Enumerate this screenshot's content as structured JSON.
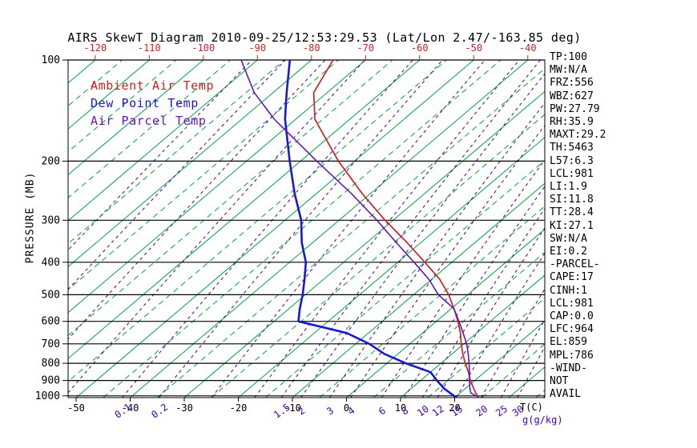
{
  "axes": {
    "pressure_label": "PRESSURE (MB)",
    "pressure_ticks": [
      100,
      200,
      300,
      400,
      500,
      600,
      700,
      800,
      900,
      1000
    ],
    "temp_axis_label": "T(C)",
    "mixing_axis_label": "g(g/kg)",
    "top_temp_labels": [
      -120,
      -110,
      -100,
      -90,
      -80,
      -70,
      -60,
      -50,
      -40
    ],
    "bottom_temp_labels": [
      -50,
      -40,
      -30,
      -20,
      -10,
      0,
      10,
      20
    ]
  },
  "stats": {
    "lines": [
      "TP:100",
      "MW:N/A",
      "FRZ:556",
      "WBZ:627",
      "PW:27.79",
      "RH:35.9",
      "MAXT:29.2",
      "TH:5463",
      "L57:6.3",
      "LCL:981",
      "LI:1.9",
      "SI:11.8",
      "TT:28.4",
      "KI:27.1",
      "SW:N/A",
      "EI:0.2",
      "-PARCEL-",
      "CAPE:17",
      "CINH:1",
      "LCL:981",
      "CAP:0.0",
      "LFC:964",
      "EL:859",
      "MPL:786",
      "-WIND-",
      "NOT",
      "AVAIL"
    ]
  },
  "chart_data": {
    "type": "line",
    "subtype": "skew-t-log-p",
    "title": "AIRS SkewT Diagram 2010-09-25/12:53:29.53 (Lat/Lon 2.47/-163.85 deg)",
    "units": {
      "pressure": "mb",
      "temperature": "C",
      "mixing_ratio": "g/kg"
    },
    "pressure_range": [
      100,
      1012
    ],
    "isotherm_step_c": 10,
    "legend_position": "top-left",
    "grid": true,
    "mixing_ratio_labeled": [
      0.1,
      0.2,
      1.5,
      2,
      3,
      4,
      6,
      8,
      10,
      12,
      15,
      20,
      25,
      30
    ],
    "mixing_ratio_unlabeled": [
      0.001,
      0.003,
      0.01,
      0.03,
      0.5,
      1,
      40
    ],
    "colors": {
      "isotherm": "#00a444",
      "mixing_ratio": "#4400aa",
      "temp_axis": "#cc2222",
      "pressure_grid": "#000000"
    },
    "series": [
      {
        "name": "Ambient Air Temp",
        "color": "#cc2222",
        "width": 1.7,
        "points": [
          [
            1008,
            24.3
          ],
          [
            1000,
            23.8
          ],
          [
            950,
            21.5
          ],
          [
            900,
            19.2
          ],
          [
            850,
            17.0
          ],
          [
            800,
            14.5
          ],
          [
            750,
            12.0
          ],
          [
            700,
            9.5
          ],
          [
            650,
            7.0
          ],
          [
            600,
            4.0
          ],
          [
            550,
            0.5
          ],
          [
            500,
            -3.5
          ],
          [
            450,
            -8.5
          ],
          [
            400,
            -15.0
          ],
          [
            350,
            -22.5
          ],
          [
            300,
            -31.5
          ],
          [
            250,
            -41.5
          ],
          [
            200,
            -53.0
          ],
          [
            150,
            -66.5
          ],
          [
            125,
            -72.5
          ],
          [
            100,
            -76.0
          ]
        ]
      },
      {
        "name": "Dew Point Temp",
        "color": "#1a1acc",
        "width": 2.6,
        "points": [
          [
            1008,
            20.0
          ],
          [
            1000,
            19.5
          ],
          [
            950,
            16.0
          ],
          [
            900,
            13.0
          ],
          [
            850,
            10.0
          ],
          [
            800,
            3.5
          ],
          [
            750,
            -2.5
          ],
          [
            700,
            -7.5
          ],
          [
            650,
            -14.0
          ],
          [
            600,
            -25.5
          ],
          [
            550,
            -28.0
          ],
          [
            500,
            -30.5
          ],
          [
            450,
            -33.5
          ],
          [
            400,
            -37.0
          ],
          [
            350,
            -42.0
          ],
          [
            300,
            -47.0
          ],
          [
            250,
            -54.0
          ],
          [
            200,
            -62.0
          ],
          [
            150,
            -72.0
          ],
          [
            125,
            -77.5
          ],
          [
            100,
            -84.0
          ]
        ]
      },
      {
        "name": "Air Parcel Temp",
        "color": "#6318b5",
        "width": 1.6,
        "points": [
          [
            1008,
            24.3
          ],
          [
            981,
            22.0
          ],
          [
            950,
            20.8
          ],
          [
            900,
            19.0
          ],
          [
            850,
            17.2
          ],
          [
            800,
            15.2
          ],
          [
            750,
            13.0
          ],
          [
            700,
            10.5
          ],
          [
            650,
            7.5
          ],
          [
            600,
            4.2
          ],
          [
            550,
            0.5
          ],
          [
            500,
            -5.4
          ],
          [
            450,
            -10.5
          ],
          [
            400,
            -17.0
          ],
          [
            350,
            -24.5
          ],
          [
            300,
            -33.0
          ],
          [
            250,
            -43.5
          ],
          [
            200,
            -57.0
          ],
          [
            150,
            -74.0
          ],
          [
            125,
            -83.5
          ],
          [
            100,
            -93.0
          ]
        ]
      }
    ]
  }
}
